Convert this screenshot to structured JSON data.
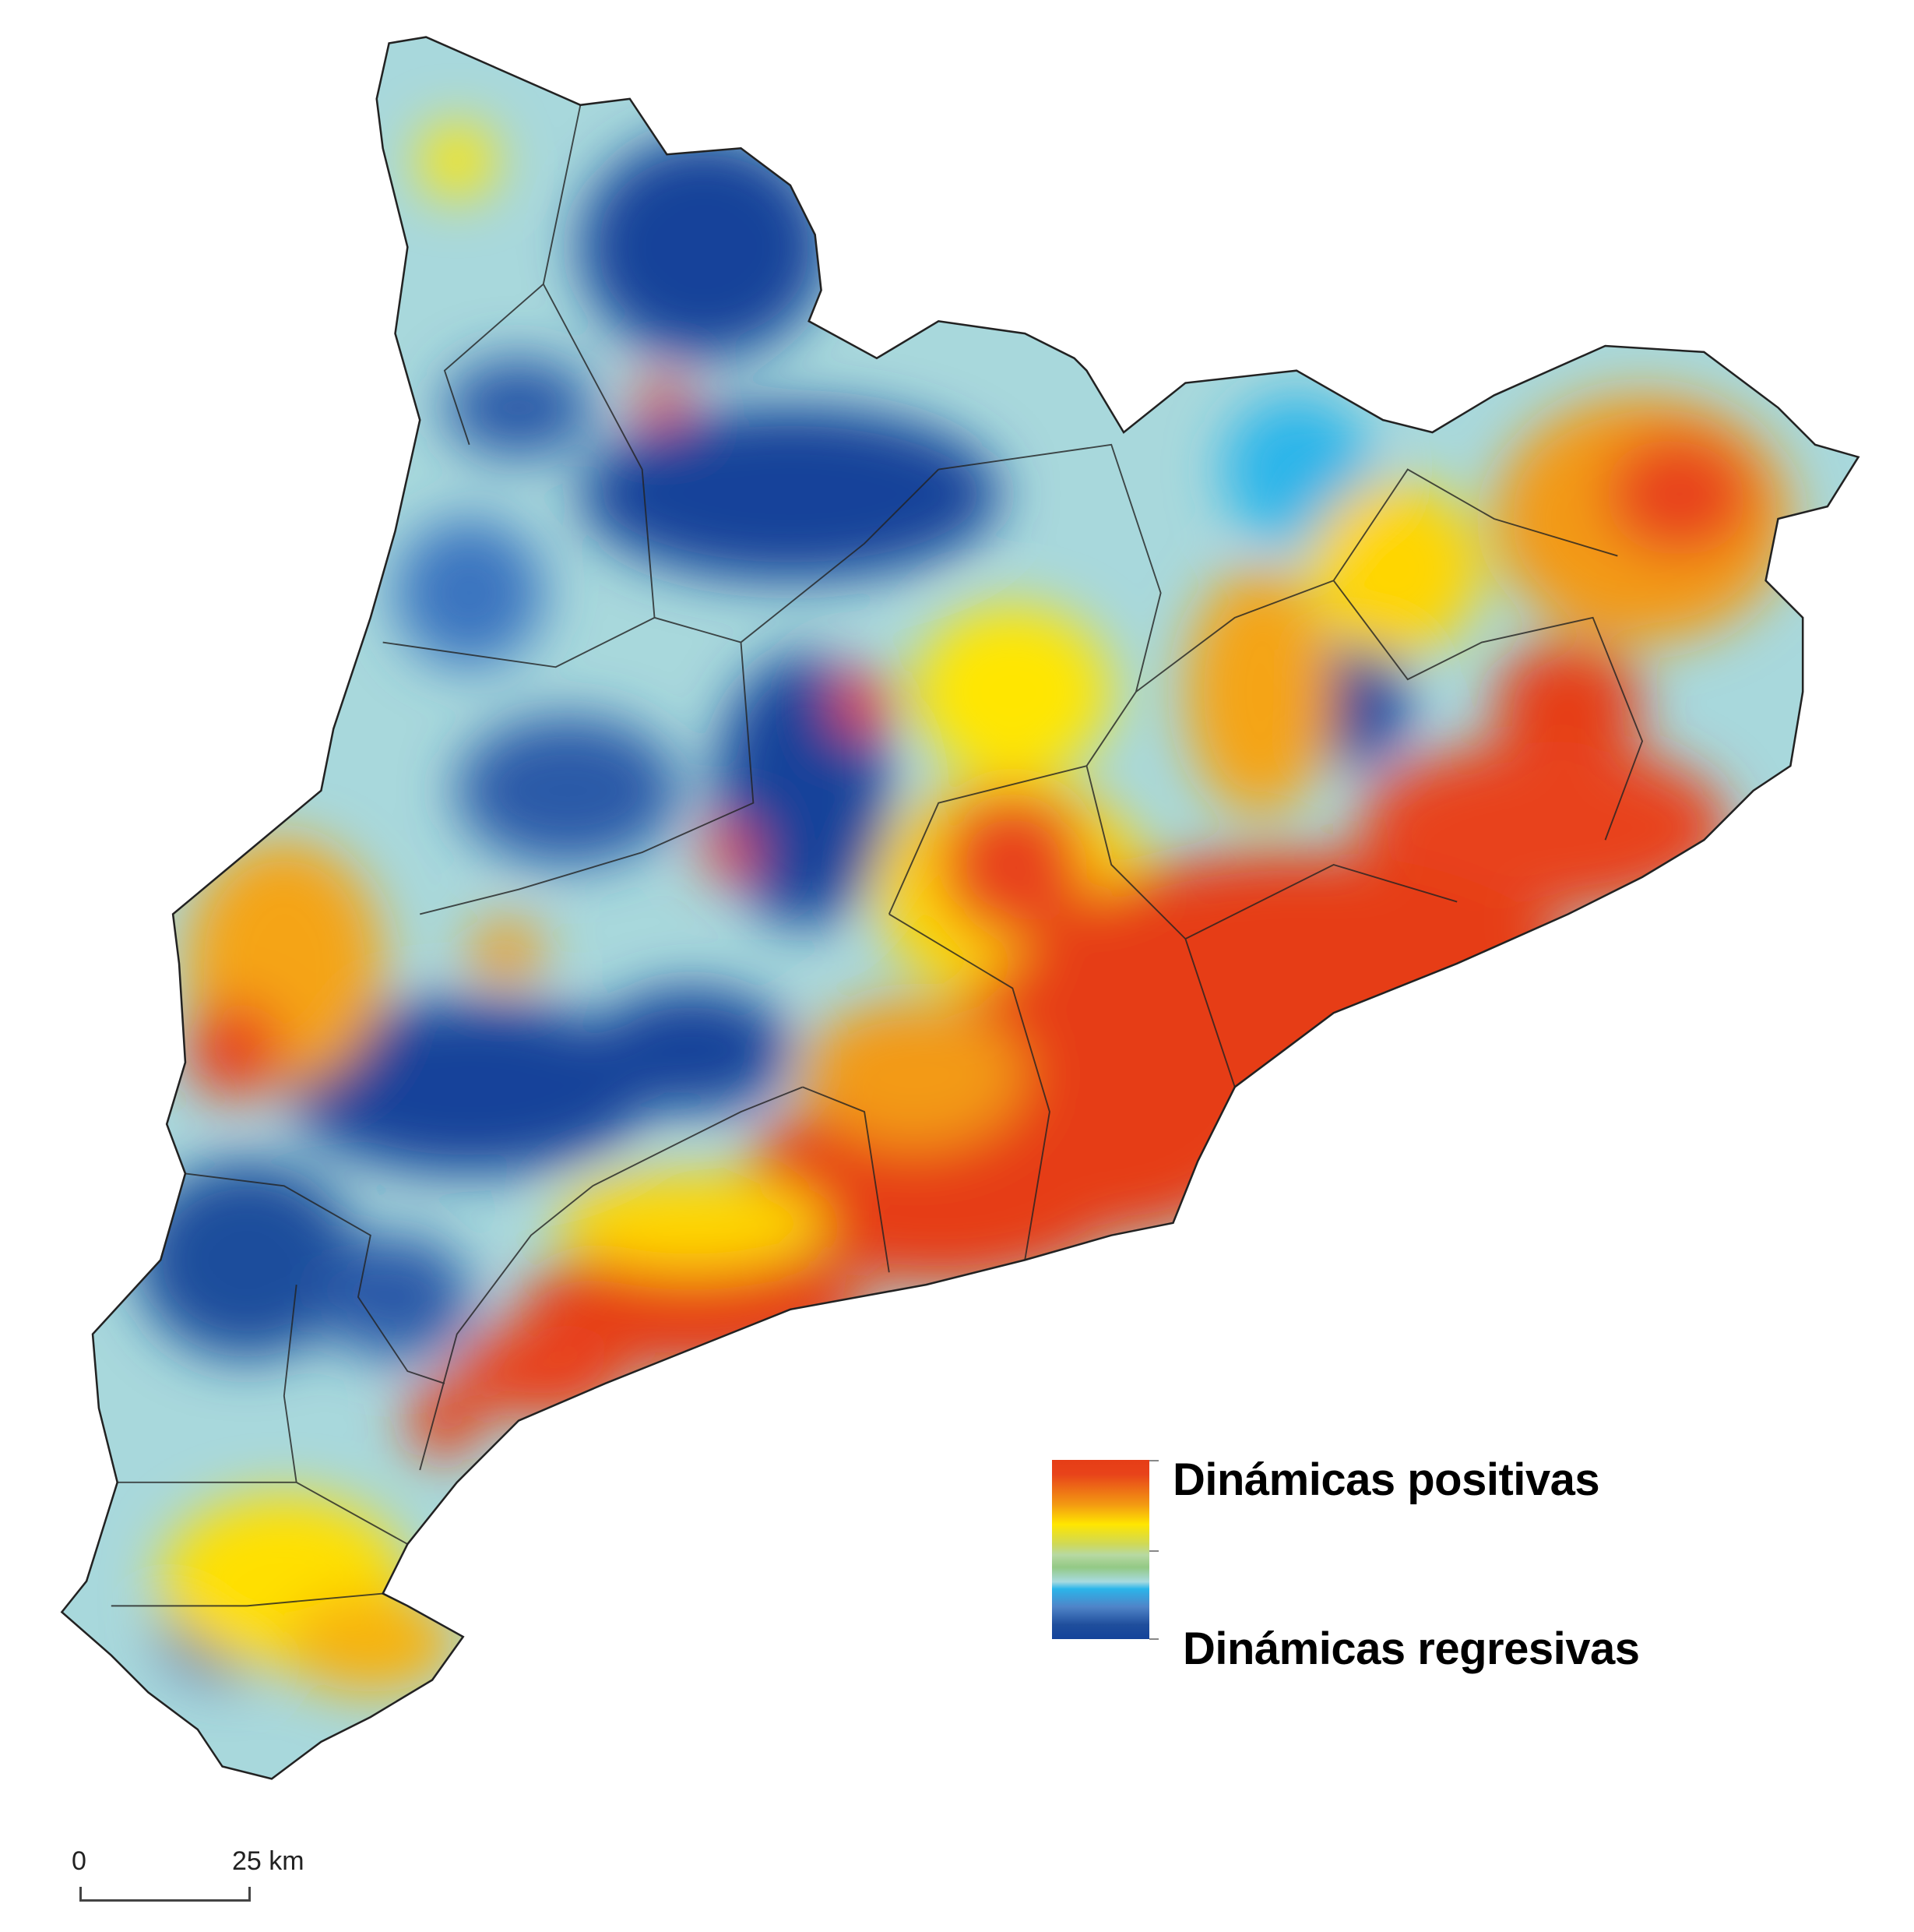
{
  "legend": {
    "top_label": "Dinámicas positivas",
    "bottom_label": "Dinámicas regresivas",
    "colors": [
      "#e63d16",
      "#f39a12",
      "#ffe600",
      "#93c985",
      "#a8dbe0",
      "#2bb5ea",
      "#14439a"
    ]
  },
  "scale_bar": {
    "start_label": "0",
    "end_label": "25 km"
  },
  "map": {
    "colors": {
      "positive": "#e63d16",
      "neutral": "#a8dbe0",
      "regressive": "#14439a",
      "boundary": "#222222"
    }
  }
}
